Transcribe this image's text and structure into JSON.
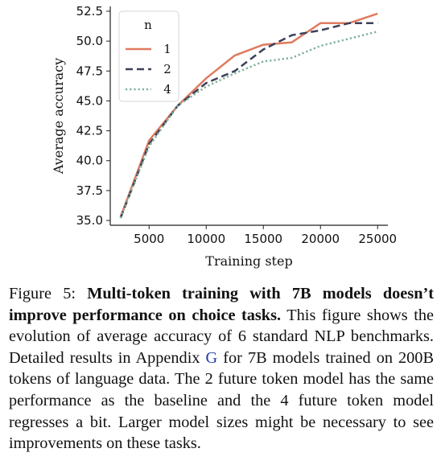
{
  "chart_data": {
    "type": "line",
    "title": "",
    "xlabel": "Training step",
    "ylabel": "Average accuracy",
    "xlim": [
      1600,
      25900
    ],
    "ylim": [
      34.6,
      52.9
    ],
    "xticks": [
      5000,
      10000,
      15000,
      20000,
      25000
    ],
    "xtick_labels": [
      "5000",
      "10000",
      "15000",
      "20000",
      "25000"
    ],
    "yticks": [
      35.0,
      37.5,
      40.0,
      42.5,
      45.0,
      47.5,
      50.0,
      52.5
    ],
    "ytick_labels": [
      "35.0",
      "37.5",
      "40.0",
      "42.5",
      "45.0",
      "47.5",
      "50.0",
      "52.5"
    ],
    "grid": false,
    "legend_title": "n",
    "legend_position": "top-left",
    "series": [
      {
        "name": "1",
        "color": "#e07a5f",
        "style": "solid",
        "x": [
          2500,
          5000,
          7500,
          10000,
          12500,
          15000,
          17500,
          20000,
          22500,
          25000
        ],
        "y": [
          35.3,
          41.7,
          44.6,
          46.9,
          48.8,
          49.7,
          49.9,
          51.5,
          51.5,
          52.3
        ]
      },
      {
        "name": "2",
        "color": "#3d405b",
        "style": "dashed",
        "x": [
          2500,
          5000,
          7500,
          10000,
          12500,
          15000,
          17500,
          20000,
          22500,
          25000
        ],
        "y": [
          35.2,
          41.4,
          44.6,
          46.5,
          47.5,
          49.3,
          50.5,
          50.9,
          51.5,
          51.5
        ]
      },
      {
        "name": "4",
        "color": "#81b29a",
        "style": "dotted",
        "x": [
          2500,
          5000,
          7500,
          10000,
          12500,
          15000,
          17500,
          20000,
          22500,
          25000
        ],
        "y": [
          35.2,
          41.2,
          44.6,
          46.2,
          47.3,
          48.3,
          48.6,
          49.6,
          50.2,
          50.8
        ]
      }
    ]
  },
  "caption": {
    "label": "Figure 5:",
    "bold": "Multi-token training with 7B models doesn’t improve performance on choice tasks.",
    "text_before_link": "This figure shows the evolution of average accuracy of 6 standard NLP bench­marks.  Detailed results in Appendix",
    "link": "G",
    "text_after_link": "for 7B models trained on 200B tokens of language data.  The 2 future token model has the same performance as the baseline and the 4 future token model regresses a bit. Larger model sizes might be necessary to see improvements on these tasks."
  }
}
